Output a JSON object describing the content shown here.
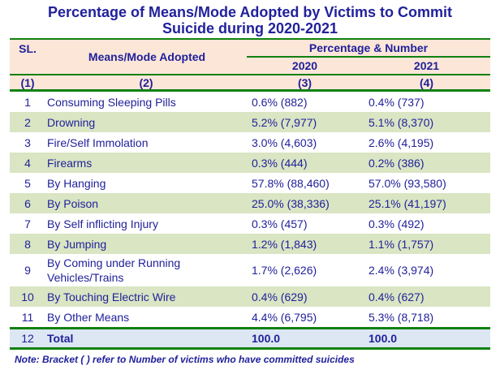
{
  "title": {
    "line1": "Percentage of Means/Mode Adopted by Victims to Commit",
    "line2": "Suicide during 2020-2021"
  },
  "table": {
    "header": {
      "sl": "SL.",
      "means": "Means/Mode Adopted",
      "group": "Percentage & Number",
      "year_2020": "2020",
      "year_2021": "2021",
      "index_row": {
        "c1": "(1)",
        "c2": "(2)",
        "c3": "(3)",
        "c4": "(4)"
      }
    },
    "rows": [
      {
        "sl": "1",
        "means": "Consuming Sleeping Pills",
        "y2020": "0.6% (882)",
        "y2021": "0.4% (737)"
      },
      {
        "sl": "2",
        "means": "Drowning",
        "y2020": "5.2% (7,977)",
        "y2021": "5.1% (8,370)"
      },
      {
        "sl": "3",
        "means": "Fire/Self Immolation",
        "y2020": "3.0% (4,603)",
        "y2021": "2.6% (4,195)"
      },
      {
        "sl": "4",
        "means": "Firearms",
        "y2020": "0.3% (444)",
        "y2021": "0.2% (386)"
      },
      {
        "sl": "5",
        "means": "By Hanging",
        "y2020": "57.8% (88,460)",
        "y2021": "57.0% (93,580)"
      },
      {
        "sl": "6",
        "means": "By Poison",
        "y2020": "25.0% (38,336)",
        "y2021": "25.1% (41,197)"
      },
      {
        "sl": "7",
        "means": "By Self inflicting  Injury",
        "y2020": "0.3% (457)",
        "y2021": "0.3% (492)"
      },
      {
        "sl": "8",
        "means": "By Jumping",
        "y2020": "1.2% (1,843)",
        "y2021": "1.1% (1,757)"
      },
      {
        "sl": "9",
        "means": "By Coming under Running Vehicles/Trains",
        "y2020": "1.7% (2,626)",
        "y2021": "2.4% (3,974)"
      },
      {
        "sl": "10",
        "means": "By Touching Electric Wire",
        "y2020": "0.4% (629)",
        "y2021": "0.4% (627)"
      },
      {
        "sl": "11",
        "means": "By Other Means",
        "y2020": "4.4% (6,795)",
        "y2021": "5.3% (8,718)"
      }
    ],
    "total_row": {
      "sl": "12",
      "label": "Total",
      "y2020": "100.0",
      "y2021": "100.0"
    }
  },
  "note": "Note: Bracket ( ) refer to Number of victims who have committed suicides",
  "colors": {
    "text_navy": "#21219B",
    "border_green": "#108110",
    "header_peach": "#FBE6D8",
    "row_alt_green": "#D9E5C3",
    "total_blue": "#DCE7F3",
    "background": "#FFFFFF"
  },
  "chart_data": {
    "type": "table",
    "title": "Percentage of Means/Mode Adopted by Victims to Commit Suicide during 2020-2021",
    "columns": [
      "SL.",
      "Means/Mode Adopted",
      "2020 Percentage & Number",
      "2021 Percentage & Number"
    ],
    "categories": [
      "Consuming Sleeping Pills",
      "Drowning",
      "Fire/Self Immolation",
      "Firearms",
      "By Hanging",
      "By Poison",
      "By Self inflicting Injury",
      "By Jumping",
      "By Coming under Running Vehicles/Trains",
      "By Touching Electric Wire",
      "By Other Means"
    ],
    "series": [
      {
        "name": "2020",
        "percent": [
          0.6,
          5.2,
          3.0,
          0.3,
          57.8,
          25.0,
          0.3,
          1.2,
          1.7,
          0.4,
          4.4
        ],
        "number": [
          882,
          7977,
          4603,
          444,
          88460,
          38336,
          457,
          1843,
          2626,
          629,
          6795
        ],
        "total_percent": 100.0
      },
      {
        "name": "2021",
        "percent": [
          0.4,
          5.1,
          2.6,
          0.2,
          57.0,
          25.1,
          0.3,
          1.1,
          2.4,
          0.4,
          5.3
        ],
        "number": [
          737,
          8370,
          4195,
          386,
          93580,
          41197,
          492,
          1757,
          3974,
          627,
          8718
        ],
        "total_percent": 100.0
      }
    ],
    "note": "Bracket ( ) refer to Number of victims who have committed suicides"
  }
}
